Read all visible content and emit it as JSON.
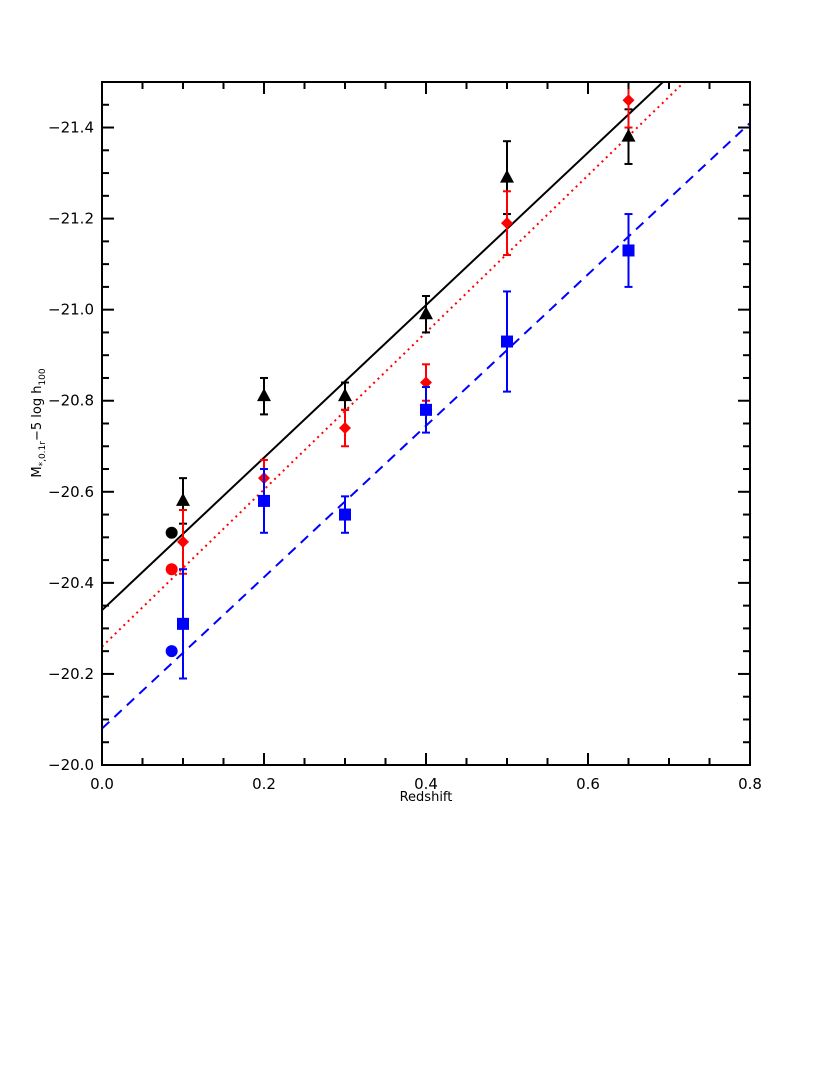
{
  "chart_data": {
    "type": "scatter",
    "xlabel": "Redshift",
    "ylabel": {
      "main": "M",
      "sub1": "*,0.1r",
      "mid": "−5 log h",
      "sub2": "100"
    },
    "xlim": [
      0.0,
      0.8
    ],
    "ylim": [
      -20.0,
      -21.5
    ],
    "y_inverted": true,
    "grid": false,
    "x_ticks": [
      "0.0",
      "0.2",
      "0.4",
      "0.6",
      "0.8"
    ],
    "x_tick_values": [
      0.0,
      0.2,
      0.4,
      0.6,
      0.8
    ],
    "y_ticks": [
      "−20.0",
      "−20.2",
      "−20.4",
      "−20.6",
      "−20.8",
      "−21.0",
      "−21.2",
      "−21.4"
    ],
    "y_tick_values": [
      -20.0,
      -20.2,
      -20.4,
      -20.6,
      -20.8,
      -21.0,
      -21.2,
      -21.4
    ],
    "series": [
      {
        "marker": "triangle",
        "color": "#000000",
        "x": [
          0.1,
          0.2,
          0.3,
          0.4,
          0.5,
          0.65
        ],
        "y": [
          -20.58,
          -20.81,
          -20.81,
          -20.99,
          -21.29,
          -21.38
        ],
        "err": [
          0.05,
          0.04,
          0.03,
          0.04,
          0.08,
          0.06
        ]
      },
      {
        "marker": "diamond",
        "color": "#ff0000",
        "x": [
          0.1,
          0.2,
          0.3,
          0.4,
          0.5,
          0.65
        ],
        "y": [
          -20.49,
          -20.63,
          -20.74,
          -20.84,
          -21.19,
          -21.46
        ],
        "err": [
          0.07,
          0.04,
          0.04,
          0.04,
          0.07,
          0.06
        ]
      },
      {
        "marker": "square",
        "color": "#0000ff",
        "x": [
          0.1,
          0.2,
          0.3,
          0.4,
          0.5,
          0.65
        ],
        "y": [
          -20.31,
          -20.58,
          -20.55,
          -20.78,
          -20.93,
          -21.13
        ],
        "err": [
          0.12,
          0.07,
          0.04,
          0.05,
          0.11,
          0.08
        ]
      },
      {
        "marker": "circle",
        "color": "#000000",
        "x": [
          0.086
        ],
        "y": [
          -20.51
        ]
      },
      {
        "marker": "circle",
        "color": "#ff0000",
        "x": [
          0.086
        ],
        "y": [
          -20.43
        ]
      },
      {
        "marker": "circle",
        "color": "#0000ff",
        "x": [
          0.086
        ],
        "y": [
          -20.25
        ]
      }
    ],
    "fit_lines": [
      {
        "style": "solid",
        "color": "#000000",
        "x": [
          0.0,
          0.8
        ],
        "y": [
          -20.34,
          -21.68
        ]
      },
      {
        "style": "dotted",
        "color": "#ff0000",
        "x": [
          0.0,
          0.8
        ],
        "y": [
          -20.26,
          -21.64
        ]
      },
      {
        "style": "dashed",
        "color": "#0000ff",
        "x": [
          0.0,
          0.8
        ],
        "y": [
          -20.08,
          -21.41
        ]
      }
    ]
  }
}
